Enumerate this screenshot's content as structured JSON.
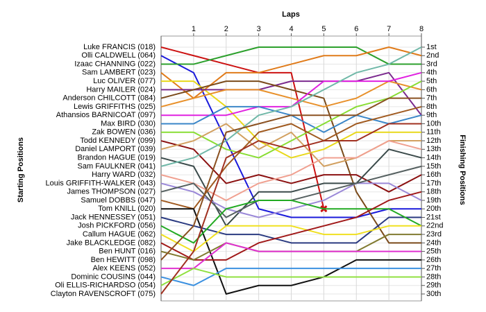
{
  "chart_data": {
    "type": "bump",
    "xlabel": "Laps",
    "ylabel": "Starting Positions",
    "y2label": "Finishing Positions",
    "x": [
      0,
      1,
      2,
      3,
      4,
      5,
      6,
      7,
      8
    ],
    "xlim": [
      0,
      8
    ],
    "xticks": [
      1,
      2,
      3,
      4,
      5,
      6,
      7,
      8
    ],
    "ylim": [
      1,
      30
    ],
    "y_inverted": true,
    "y2lim": [
      1,
      30
    ],
    "y2ticks": [
      {
        "value": 1,
        "label": "1st"
      },
      {
        "value": 2,
        "label": "2nd"
      },
      {
        "value": 3,
        "label": "3rd"
      },
      {
        "value": 4,
        "label": "4th"
      },
      {
        "value": 5,
        "label": "5th"
      },
      {
        "value": 6,
        "label": "6th"
      },
      {
        "value": 7,
        "label": "7th"
      },
      {
        "value": 8,
        "label": "8th"
      },
      {
        "value": 9,
        "label": "9th"
      },
      {
        "value": 10,
        "label": "10th"
      },
      {
        "value": 11,
        "label": "11th"
      },
      {
        "value": 12,
        "label": "12th"
      },
      {
        "value": 13,
        "label": "13th"
      },
      {
        "value": 14,
        "label": "14th"
      },
      {
        "value": 15,
        "label": "15th"
      },
      {
        "value": 16,
        "label": "16th"
      },
      {
        "value": 17,
        "label": "17th"
      },
      {
        "value": 18,
        "label": "18th"
      },
      {
        "value": 19,
        "label": "19th"
      },
      {
        "value": 20,
        "label": "20th"
      },
      {
        "value": 21,
        "label": "21st"
      },
      {
        "value": 22,
        "label": "22nd"
      },
      {
        "value": 23,
        "label": "23rd"
      },
      {
        "value": 24,
        "label": "24th"
      },
      {
        "value": 25,
        "label": "25th"
      },
      {
        "value": 26,
        "label": "26th"
      },
      {
        "value": 27,
        "label": "27th"
      },
      {
        "value": 28,
        "label": "28th"
      },
      {
        "value": 29,
        "label": "29th"
      },
      {
        "value": 30,
        "label": "30th"
      }
    ],
    "grid": true,
    "series": [
      {
        "name": "Luke FRANCIS (018)",
        "color": "#cc1111",
        "values": [
          1,
          2,
          3,
          4,
          4,
          20,
          null,
          null,
          null
        ],
        "end_marker": "x"
      },
      {
        "name": "Olli CALDWELL (064)",
        "color": "#1a1adb",
        "values": [
          2,
          4,
          12,
          20,
          21,
          21,
          21,
          20,
          20
        ]
      },
      {
        "name": "Izaac CHANNING (022)",
        "color": "#2ca02c",
        "values": [
          3,
          3,
          2,
          1,
          1,
          1,
          1,
          3,
          3
        ]
      },
      {
        "name": "Sam LAMBERT (023)",
        "color": "#e07b1a",
        "values": [
          4,
          7,
          4,
          4,
          3,
          2,
          2,
          1,
          2
        ]
      },
      {
        "name": "Luc OLIVER (077)",
        "color": "#e8d81a",
        "values": [
          5,
          5,
          8,
          12,
          14,
          13,
          11,
          11,
          11
        ]
      },
      {
        "name": "Harry MAILER (024)",
        "color": "#7b2a8e",
        "values": [
          6,
          6,
          6,
          6,
          5,
          5,
          5,
          4,
          9
        ]
      },
      {
        "name": "Anderson CHILCOTT (084)",
        "color": "#7a4a1a",
        "values": [
          7,
          6,
          5,
          5,
          6,
          7,
          18,
          24,
          24
        ]
      },
      {
        "name": "Lewis GRIFFITHS (025)",
        "color": "#e8902a",
        "values": [
          8,
          7,
          6,
          6,
          7,
          8,
          7,
          5,
          6
        ]
      },
      {
        "name": "Athansios BARNICOAT (097)",
        "color": "#e020e0",
        "values": [
          9,
          9,
          9,
          8,
          8,
          5,
          5,
          5,
          4
        ]
      },
      {
        "name": "Max BIRD (030)",
        "color": "#3a86c8",
        "values": [
          10,
          10,
          8,
          8,
          9,
          11,
          9,
          10,
          9
        ]
      },
      {
        "name": "Zak BOWEN (036)",
        "color": "#88dd33",
        "values": [
          11,
          11,
          13,
          14,
          12,
          10,
          8,
          7,
          5
        ]
      },
      {
        "name": "Todd KENNEDY (099)",
        "color": "#8b1010",
        "values": [
          12,
          13,
          17,
          16,
          17,
          16,
          16,
          18,
          16
        ]
      },
      {
        "name": "Daniel LAMPORT (039)",
        "color": "#d2a060",
        "values": [
          13,
          12,
          10,
          13,
          11,
          15,
          14,
          12,
          12
        ]
      },
      {
        "name": "Brandon HAGUE (019)",
        "color": "#3a4a4a",
        "values": [
          14,
          15,
          22,
          18,
          18,
          17,
          17,
          13,
          14
        ]
      },
      {
        "name": "Sam FAULKNER (041)",
        "color": "#70b8a8",
        "values": [
          15,
          14,
          12,
          9,
          8,
          6,
          4,
          3,
          1
        ]
      },
      {
        "name": "Harry WARD (032)",
        "color": "#f0a090",
        "values": [
          16,
          17,
          19,
          17,
          16,
          14,
          14,
          12,
          13
        ]
      },
      {
        "name": "Louis GRIFFITH-WALKER (043)",
        "color": "#9a88d8",
        "values": [
          17,
          18,
          20,
          21,
          20,
          19,
          17,
          17,
          19
        ]
      },
      {
        "name": "James THOMPSON (027)",
        "color": "#556060",
        "values": [
          18,
          17,
          21,
          19,
          19,
          18,
          17,
          16,
          15
        ]
      },
      {
        "name": "Samuel DOBBS (047)",
        "color": "#a05a20",
        "values": [
          19,
          20,
          15,
          11,
          10,
          12,
          10,
          9,
          8
        ]
      },
      {
        "name": "Tom KNILL (020)",
        "color": "#111111",
        "values": [
          20,
          20,
          30,
          29,
          29,
          28,
          26,
          26,
          26
        ]
      },
      {
        "name": "Jack HENNESSEY (051)",
        "color": "#2a3a80",
        "values": [
          21,
          22,
          23,
          23,
          24,
          24,
          24,
          21,
          21
        ]
      },
      {
        "name": "Josh PICKFORD (056)",
        "color": "#22aa22",
        "values": [
          22,
          24,
          20,
          19,
          19,
          20,
          20,
          20,
          22
        ]
      },
      {
        "name": "Callum HAGUE (062)",
        "color": "#f0e020",
        "values": [
          23,
          25,
          22,
          22,
          22,
          23,
          23,
          22,
          22
        ]
      },
      {
        "name": "Jake BLACKLEDGE (082)",
        "color": "#a01818",
        "values": [
          24,
          26,
          26,
          24,
          23,
          22,
          21,
          19,
          18
        ]
      },
      {
        "name": "Ben HUNT (016)",
        "color": "#807a30",
        "values": [
          25,
          26,
          24,
          25,
          25,
          25,
          25,
          23,
          23
        ]
      },
      {
        "name": "Ben HEWITT (098)",
        "color": "#8a5020",
        "values": [
          26,
          22,
          11,
          10,
          9,
          9,
          9,
          7,
          7
        ]
      },
      {
        "name": "Alex KEENS (052)",
        "color": "#e030d0",
        "values": [
          27,
          27,
          24,
          25,
          25,
          25,
          25,
          25,
          25
        ]
      },
      {
        "name": "Dominic COUSINS (044)",
        "color": "#3a90e0",
        "values": [
          28,
          29,
          27,
          27,
          27,
          27,
          27,
          27,
          27
        ]
      },
      {
        "name": "Oli ELLIS-RICHARDSO (054)",
        "color": "#90e040",
        "values": [
          29,
          27,
          28,
          28,
          28,
          28,
          28,
          28,
          28
        ]
      },
      {
        "name": "Clayton RAVENSCROFT (075)",
        "color": "#a03020",
        "values": [
          30,
          25,
          14,
          12,
          13,
          12,
          12,
          10,
          10
        ]
      }
    ]
  }
}
